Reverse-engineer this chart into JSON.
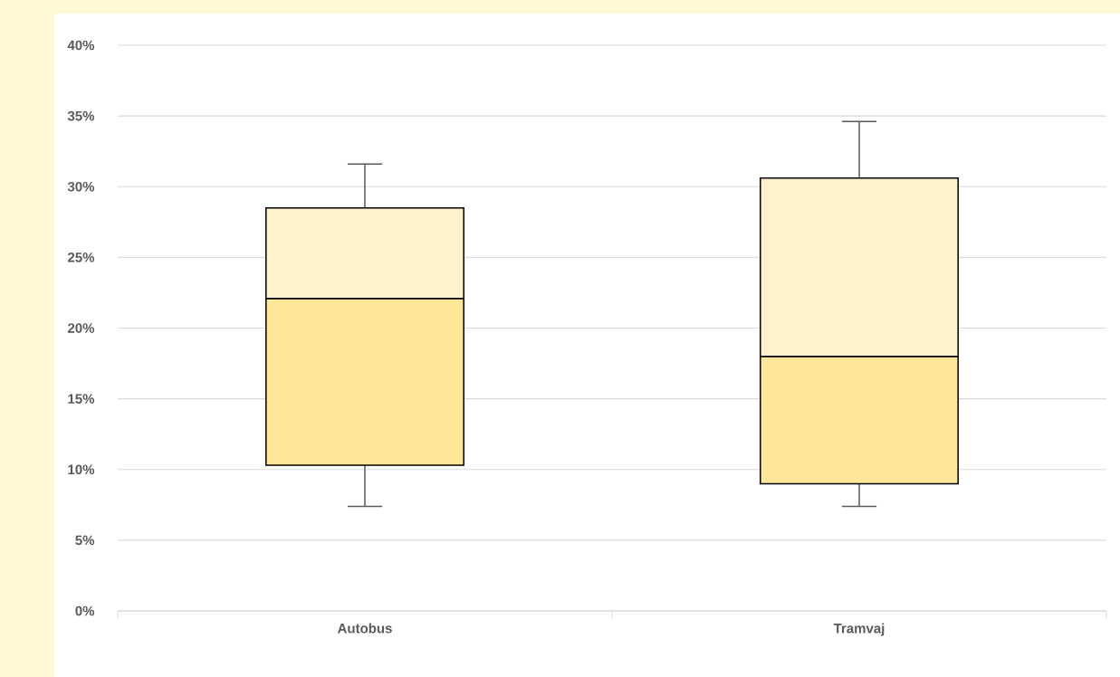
{
  "chart_data": {
    "type": "box",
    "categories": [
      "Autobus",
      "Tramvaj"
    ],
    "series": [
      {
        "color": "#ffe699",
        "boxes": [
          {
            "low": 7.4,
            "q1": 10.3,
            "median": 22.1,
            "q3": 28.5,
            "high": 31.6
          },
          {
            "low": 7.4,
            "q1": 9.0,
            "median": 18.0,
            "q3": 30.6,
            "high": 34.6
          }
        ]
      }
    ],
    "ylim": [
      0,
      40
    ],
    "yticks": [
      {
        "value": 0,
        "label": "0%"
      },
      {
        "value": 5,
        "label": "5%"
      },
      {
        "value": 10,
        "label": "10%"
      },
      {
        "value": 15,
        "label": "15%"
      },
      {
        "value": 20,
        "label": "20%"
      },
      {
        "value": 25,
        "label": "25%"
      },
      {
        "value": 30,
        "label": "30%"
      },
      {
        "value": 35,
        "label": "35%"
      },
      {
        "value": 40,
        "label": "40%"
      }
    ],
    "grid": "y"
  }
}
